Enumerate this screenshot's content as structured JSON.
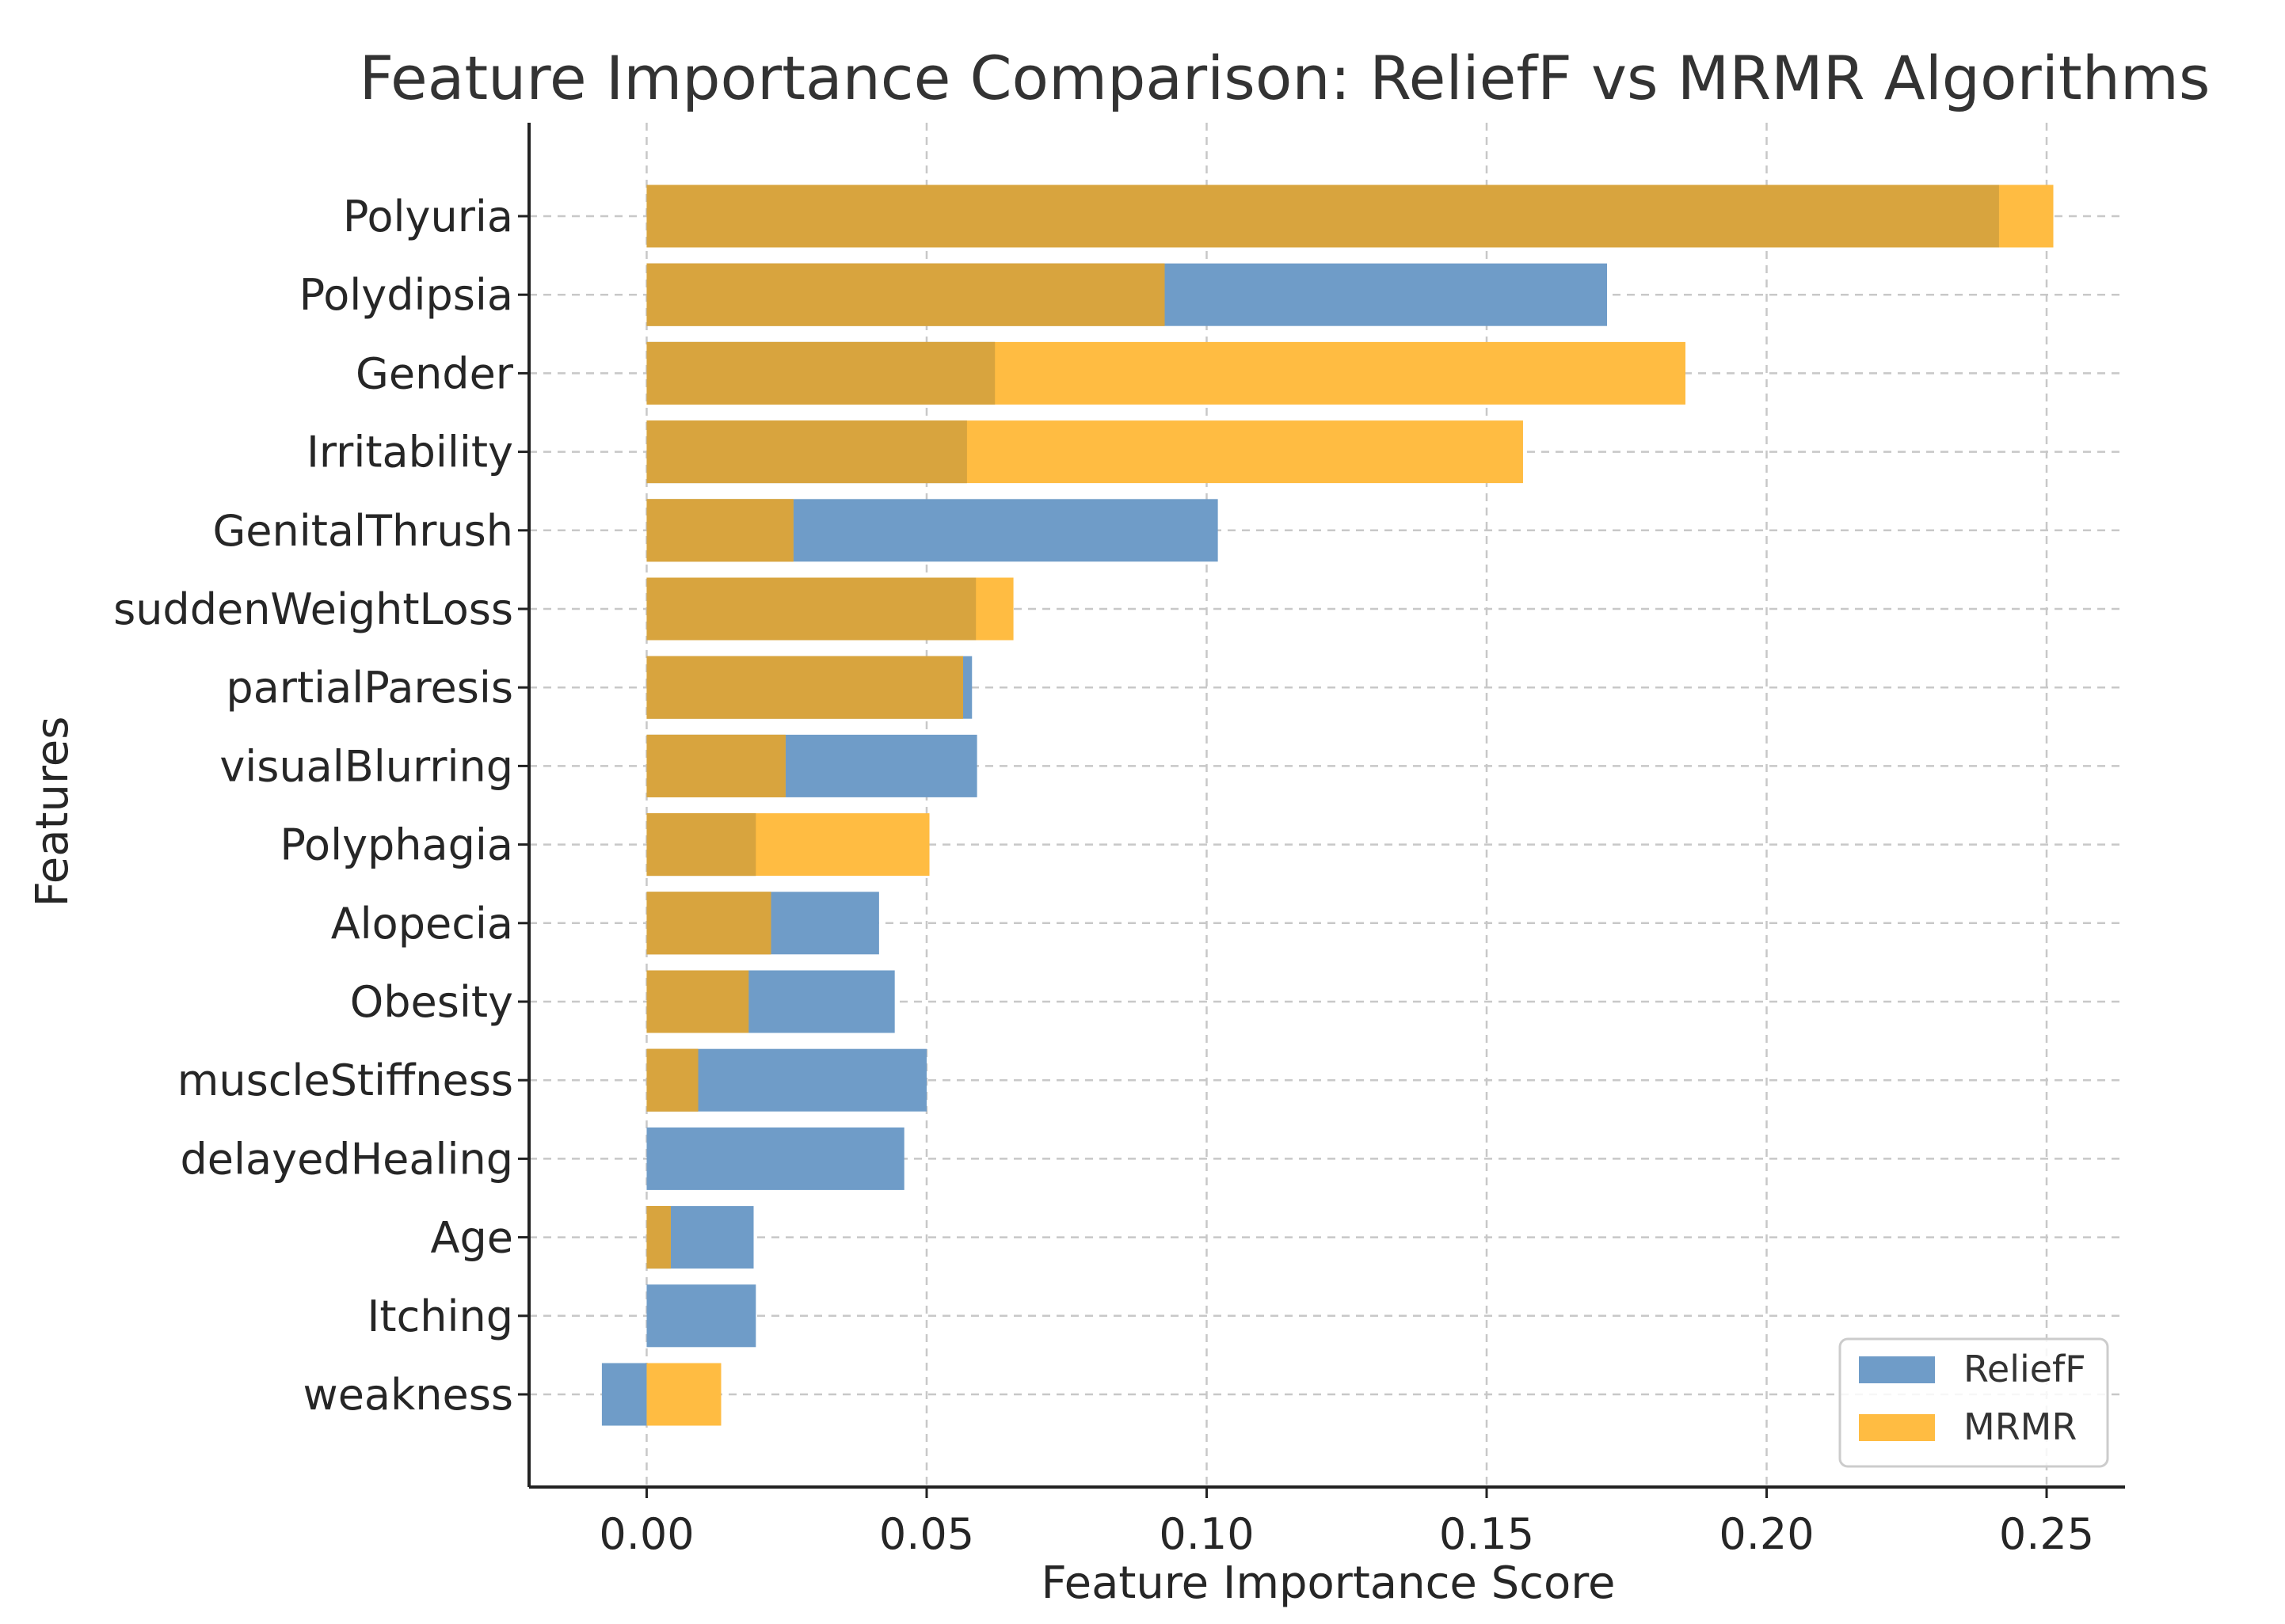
{
  "chart_data": {
    "type": "bar",
    "orientation": "horizontal",
    "title": "Feature Importance Comparison: ReliefF vs MRMR Algorithms",
    "xlabel": "Feature Importance Score",
    "ylabel": "Features",
    "xlim": [
      -0.021,
      0.264
    ],
    "xticks": [
      0.0,
      0.05,
      0.1,
      0.15,
      0.2,
      0.25
    ],
    "xtick_labels": [
      "0.00",
      "0.05",
      "0.10",
      "0.15",
      "0.20",
      "0.25"
    ],
    "grid": true,
    "legend_position": "lower-right",
    "categories": [
      "Polyuria",
      "Polydipsia",
      "Gender",
      "Irritability",
      "GenitalThrush",
      "suddenWeightLoss",
      "partialParesis",
      "visualBlurring",
      "Polyphagia",
      "Alopecia",
      "Obesity",
      "muscleStiffness",
      "delayedHealing",
      "Age",
      "Itching",
      "weakness"
    ],
    "series": [
      {
        "name": "ReliefF",
        "color": "#6f9cc8",
        "values": [
          0.2415,
          0.1715,
          0.0622,
          0.0572,
          0.102,
          0.0588,
          0.0581,
          0.059,
          0.0195,
          0.0415,
          0.0443,
          0.05,
          0.046,
          0.0191,
          0.0195,
          -0.008
        ]
      },
      {
        "name": "MRMR",
        "color": "#ffbc42",
        "values": [
          0.2512,
          0.0925,
          0.1855,
          0.1565,
          0.0262,
          0.0655,
          0.0565,
          0.0248,
          0.0505,
          0.0222,
          0.0182,
          0.0092,
          0.0,
          0.0043,
          0.0,
          0.0133
        ]
      }
    ],
    "overlap_color": "#d8a43e"
  }
}
